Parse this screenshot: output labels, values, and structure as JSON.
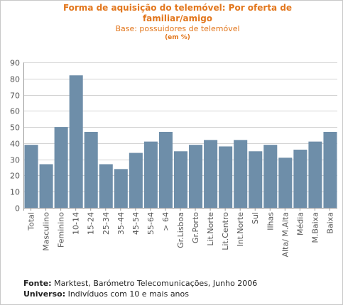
{
  "title": "Forma de aquisição do telemóvel: Por oferta de familiar/amigo",
  "subtitle": "Base: possuidores de telemóvel",
  "unit": "(em %)",
  "footer": {
    "source_label": "Fonte:",
    "source_text": "Marktest, Barómetro Telecomunicações, Junho 2006",
    "universe_label": "Universo:",
    "universe_text": "Indivíduos com 10 e mais anos"
  },
  "colors": {
    "title": "#e2761c",
    "bar": "#6e8ea9",
    "grid": "#d2d2d2"
  },
  "chart_data": {
    "type": "bar",
    "categories": [
      "Total",
      "Masculino",
      "Feminino",
      "10-14",
      "15-24",
      "25-34",
      "35-44",
      "45-54",
      "55-64",
      "> 64",
      "Gr.Lisboa",
      "Gr.Porto",
      "Lit.Norte",
      "Lit.Centro",
      "Int.Norte",
      "Sul",
      "Ilhas",
      "Alta/ M.Alta",
      "Média",
      "M.Baixa",
      "Baixa"
    ],
    "values": [
      39,
      27,
      50,
      82,
      47,
      27,
      24,
      34,
      41,
      47,
      35,
      39,
      42,
      38,
      42,
      35,
      39,
      31,
      36,
      41,
      47
    ],
    "ylim": [
      0,
      90
    ],
    "yticks": [
      0,
      10,
      20,
      30,
      40,
      50,
      60,
      70,
      80,
      90
    ],
    "grid": true,
    "legend": "none"
  }
}
